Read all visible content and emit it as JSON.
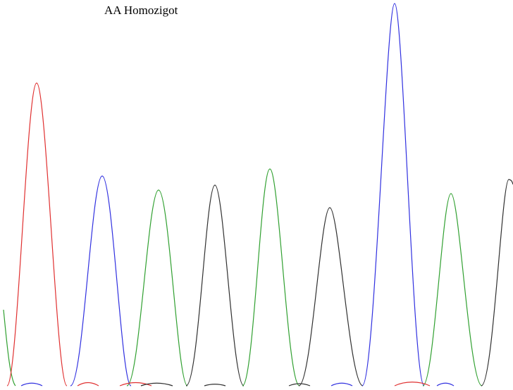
{
  "title": "AA Homozigot"
}
